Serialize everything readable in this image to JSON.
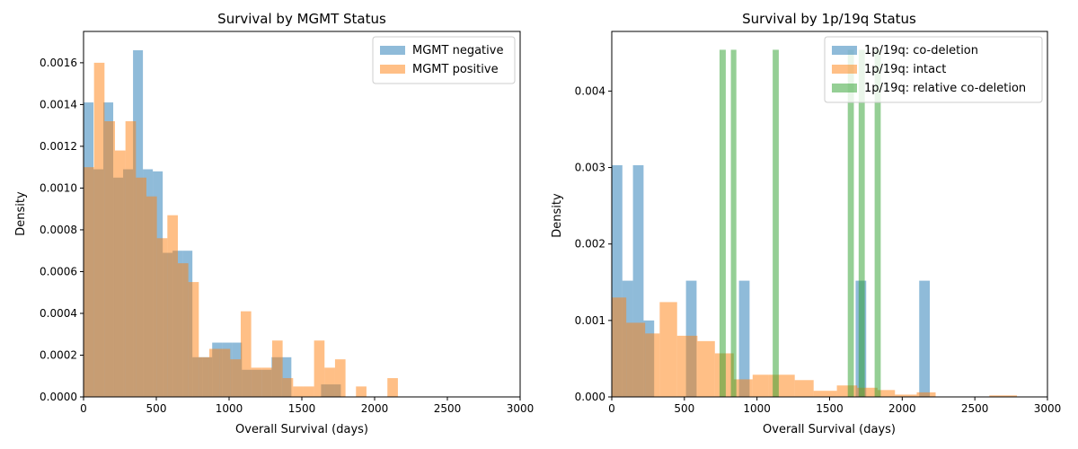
{
  "chart_data": [
    {
      "type": "histogram",
      "title": "Survival by MGMT Status",
      "xlabel": "Overall Survival (days)",
      "ylabel": "Density",
      "xlim": [
        0,
        3000
      ],
      "ylim": [
        0,
        0.00175
      ],
      "xticks": [
        "0",
        "500",
        "1000",
        "1500",
        "2000",
        "2500",
        "3000"
      ],
      "yticks": [
        "0.0000",
        "0.0002",
        "0.0004",
        "0.0006",
        "0.0008",
        "0.0010",
        "0.0012",
        "0.0014",
        "0.0016"
      ],
      "legend_position": "top-right",
      "grid": false,
      "series": [
        {
          "name": "MGMT negative",
          "color": "#1f77b4",
          "bins": [
            [
              0,
              68,
              0.00141
            ],
            [
              68,
              136,
              0.00109
            ],
            [
              136,
              204,
              0.00141
            ],
            [
              204,
              272,
              0.00105
            ],
            [
              272,
              340,
              0.00109
            ],
            [
              340,
              408,
              0.00166
            ],
            [
              408,
              476,
              0.00109
            ],
            [
              476,
              544,
              0.00108
            ],
            [
              544,
              612,
              0.00069
            ],
            [
              612,
              680,
              0.0007
            ],
            [
              680,
              748,
              0.0007
            ],
            [
              748,
              816,
              0.00019
            ],
            [
              816,
              884,
              0.00019
            ],
            [
              884,
              952,
              0.00026
            ],
            [
              952,
              1020,
              0.00026
            ],
            [
              1020,
              1088,
              0.00026
            ],
            [
              1088,
              1156,
              0.00013
            ],
            [
              1156,
              1224,
              0.00013
            ],
            [
              1224,
              1292,
              0.00013
            ],
            [
              1292,
              1360,
              0.00019
            ],
            [
              1360,
              1428,
              0.00019
            ],
            [
              1632,
              1768,
              6e-05
            ]
          ]
        },
        {
          "name": "MGMT positive",
          "color": "#ff7f0e",
          "bins": [
            [
              0,
              72,
              0.0011
            ],
            [
              72,
              144,
              0.0016
            ],
            [
              144,
              216,
              0.00132
            ],
            [
              216,
              288,
              0.00118
            ],
            [
              288,
              360,
              0.00132
            ],
            [
              360,
              432,
              0.00105
            ],
            [
              432,
              504,
              0.00096
            ],
            [
              504,
              576,
              0.00076
            ],
            [
              576,
              648,
              0.00087
            ],
            [
              648,
              720,
              0.00064
            ],
            [
              720,
              792,
              0.00055
            ],
            [
              792,
              864,
              0.00019
            ],
            [
              864,
              936,
              0.00023
            ],
            [
              936,
              1008,
              0.00023
            ],
            [
              1008,
              1080,
              0.00018
            ],
            [
              1080,
              1152,
              0.00041
            ],
            [
              1152,
              1224,
              0.00014
            ],
            [
              1224,
              1296,
              0.00014
            ],
            [
              1296,
              1368,
              0.00027
            ],
            [
              1368,
              1440,
              9e-05
            ],
            [
              1440,
              1512,
              5e-05
            ],
            [
              1512,
              1584,
              5e-05
            ],
            [
              1584,
              1656,
              0.00027
            ],
            [
              1656,
              1728,
              0.00014
            ],
            [
              1728,
              1800,
              0.00018
            ],
            [
              1872,
              1944,
              5e-05
            ],
            [
              2088,
              2160,
              9e-05
            ]
          ]
        }
      ]
    },
    {
      "type": "histogram",
      "title": "Survival by 1p/19q Status",
      "xlabel": "Overall Survival (days)",
      "ylabel": "Density",
      "xlim": [
        0,
        3000
      ],
      "ylim": [
        0,
        0.00478
      ],
      "xticks": [
        "0",
        "500",
        "1000",
        "1500",
        "2000",
        "2500",
        "3000"
      ],
      "yticks": [
        "0.000",
        "0.001",
        "0.002",
        "0.003",
        "0.004"
      ],
      "legend_position": "top-right",
      "grid": false,
      "series": [
        {
          "name": "1p/19q: co-deletion",
          "color": "#1f77b4",
          "bins": [
            [
              0,
              73,
              0.00303
            ],
            [
              73,
              146,
              0.00152
            ],
            [
              146,
              219,
              0.00303
            ],
            [
              219,
              292,
              0.001
            ],
            [
              511,
              584,
              0.00152
            ],
            [
              876,
              949,
              0.00152
            ],
            [
              1679,
              1752,
              0.00152
            ],
            [
              2117,
              2190,
              0.00152
            ]
          ]
        },
        {
          "name": "1p/19q: intact",
          "color": "#ff7f0e",
          "bins": [
            [
              0,
              100,
              0.0013
            ],
            [
              100,
              230,
              0.00097
            ],
            [
              230,
              330,
              0.00083
            ],
            [
              330,
              450,
              0.00124
            ],
            [
              450,
              590,
              0.0008
            ],
            [
              590,
              710,
              0.00073
            ],
            [
              710,
              840,
              0.00057
            ],
            [
              840,
              970,
              0.00023
            ],
            [
              970,
              1080,
              0.00029
            ],
            [
              1080,
              1260,
              0.00029
            ],
            [
              1260,
              1390,
              0.00022
            ],
            [
              1390,
              1550,
              8e-05
            ],
            [
              1550,
              1690,
              0.00015
            ],
            [
              1690,
              1830,
              0.00012
            ],
            [
              1830,
              1950,
              9e-05
            ],
            [
              1950,
              2100,
              3e-05
            ],
            [
              2100,
              2230,
              6e-05
            ],
            [
              2600,
              2790,
              2e-05
            ]
          ]
        },
        {
          "name": "1p/19q: relative co-deletion",
          "color": "#2ca02c",
          "bins": [
            [
              742,
              785,
              0.00454
            ],
            [
              820,
              858,
              0.00454
            ],
            [
              1108,
              1150,
              0.00454
            ],
            [
              1625,
              1667,
              0.00454
            ],
            [
              1700,
              1742,
              0.00454
            ],
            [
              1810,
              1852,
              0.00454
            ]
          ]
        }
      ]
    }
  ]
}
